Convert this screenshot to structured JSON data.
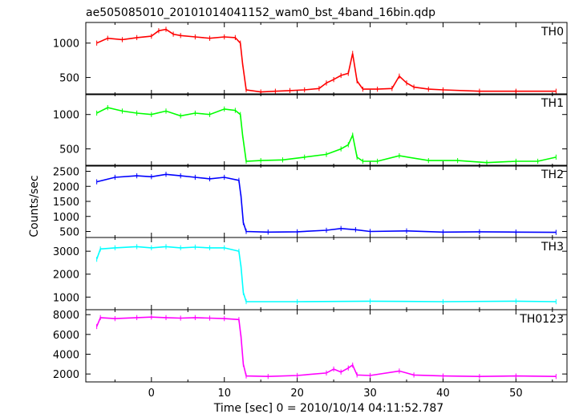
{
  "chart_data": {
    "type": "line",
    "title": "ae505085010_20101014041152_wam0_bst_4band_16bin.qdp",
    "xlabel": "Time [sec] 0 = 2010/10/14 04:11:52.787",
    "ylabel": "Counts/sec",
    "xlim": [
      -9,
      57
    ],
    "x_ticks": [
      0,
      10,
      20,
      30,
      40,
      50
    ],
    "grid": false,
    "panels": [
      {
        "name": "TH0",
        "color": "#ff0000",
        "ylim": [
          250,
          1300
        ],
        "y_ticks": [
          500,
          1000
        ],
        "x": [
          -7.5,
          -6,
          -4,
          -2,
          0,
          1,
          2,
          3,
          4,
          6,
          8,
          10,
          11.5,
          12.2,
          12.5,
          13,
          15,
          17,
          19,
          21,
          23,
          24,
          25,
          26,
          27,
          27.6,
          28.2,
          29,
          31,
          33,
          34,
          35,
          36,
          38,
          40,
          45,
          50,
          55.5
        ],
        "values": [
          1000,
          1070,
          1050,
          1080,
          1100,
          1180,
          1200,
          1130,
          1110,
          1090,
          1070,
          1090,
          1080,
          1000,
          700,
          320,
          290,
          300,
          310,
          320,
          340,
          420,
          470,
          530,
          560,
          850,
          450,
          330,
          330,
          340,
          520,
          420,
          360,
          330,
          320,
          300,
          300,
          300
        ]
      },
      {
        "name": "TH1",
        "color": "#00ff00",
        "ylim": [
          250,
          1300
        ],
        "y_ticks": [
          500,
          1000
        ],
        "x": [
          -7.5,
          -6,
          -4,
          -2,
          0,
          2,
          4,
          6,
          8,
          10,
          11.5,
          12.2,
          12.5,
          13,
          15,
          18,
          21,
          24,
          26,
          27,
          27.6,
          28.2,
          29,
          31,
          34,
          38,
          42,
          46,
          50,
          53,
          55.5
        ],
        "values": [
          1020,
          1100,
          1050,
          1020,
          1000,
          1050,
          980,
          1020,
          1000,
          1080,
          1060,
          1000,
          700,
          320,
          330,
          340,
          380,
          420,
          500,
          560,
          700,
          380,
          320,
          320,
          400,
          330,
          330,
          300,
          320,
          320,
          380
        ]
      },
      {
        "name": "TH2",
        "color": "#0000ff",
        "ylim": [
          300,
          2700
        ],
        "y_ticks": [
          500,
          1000,
          1500,
          2000,
          2500
        ],
        "x": [
          -7.5,
          -5,
          -2,
          0,
          2,
          4,
          6,
          8,
          10,
          12,
          12.3,
          12.6,
          13,
          16,
          20,
          24,
          26,
          28,
          30,
          35,
          40,
          45,
          50,
          55.5
        ],
        "values": [
          2150,
          2300,
          2350,
          2320,
          2400,
          2350,
          2300,
          2250,
          2300,
          2200,
          1650,
          800,
          500,
          480,
          490,
          540,
          600,
          560,
          500,
          520,
          480,
          490,
          480,
          470
        ]
      },
      {
        "name": "TH3",
        "color": "#00ffff",
        "ylim": [
          450,
          3600
        ],
        "y_ticks": [
          1000,
          2000,
          3000
        ],
        "x": [
          -7.5,
          -7,
          -5,
          -2,
          0,
          2,
          4,
          6,
          8,
          10,
          12,
          12.3,
          12.6,
          13,
          20,
          30,
          40,
          50,
          55.5
        ],
        "values": [
          2650,
          3100,
          3150,
          3200,
          3150,
          3200,
          3150,
          3180,
          3150,
          3150,
          3000,
          2300,
          1200,
          800,
          800,
          820,
          800,
          820,
          800
        ]
      },
      {
        "name": "TH0123",
        "color": "#ff00ff",
        "ylim": [
          1200,
          8500
        ],
        "y_ticks": [
          2000,
          4000,
          6000,
          8000
        ],
        "x": [
          -7.5,
          -7,
          -5,
          -2,
          0,
          2,
          4,
          6,
          8,
          10,
          12,
          12.3,
          12.6,
          13,
          16,
          20,
          24,
          25,
          26,
          27,
          27.6,
          28.2,
          30,
          34,
          36,
          40,
          45,
          50,
          55.5
        ],
        "values": [
          6800,
          7700,
          7600,
          7700,
          7750,
          7700,
          7650,
          7700,
          7650,
          7600,
          7500,
          5700,
          3000,
          1800,
          1750,
          1850,
          2100,
          2500,
          2200,
          2600,
          2900,
          1900,
          1850,
          2300,
          1900,
          1800,
          1750,
          1800,
          1750
        ]
      }
    ]
  }
}
